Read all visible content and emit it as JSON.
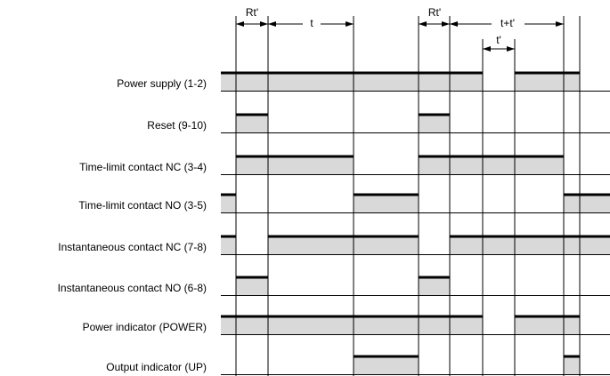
{
  "annotations": {
    "rt1": "Rt'",
    "t": "t",
    "rt2": "Rt'",
    "ttp": "t+t'",
    "tp": "t'"
  },
  "rows": [
    "Power supply (1-2)",
    "Reset (9-10)",
    "Time-limit contact NC (3-4)",
    "Time-limit contact NO (3-5)",
    "Instantaneous contact NC (7-8)",
    "Instantaneous contact NO (6-8)",
    "Power indicator (POWER)",
    "Output indicator (UP)"
  ]
}
